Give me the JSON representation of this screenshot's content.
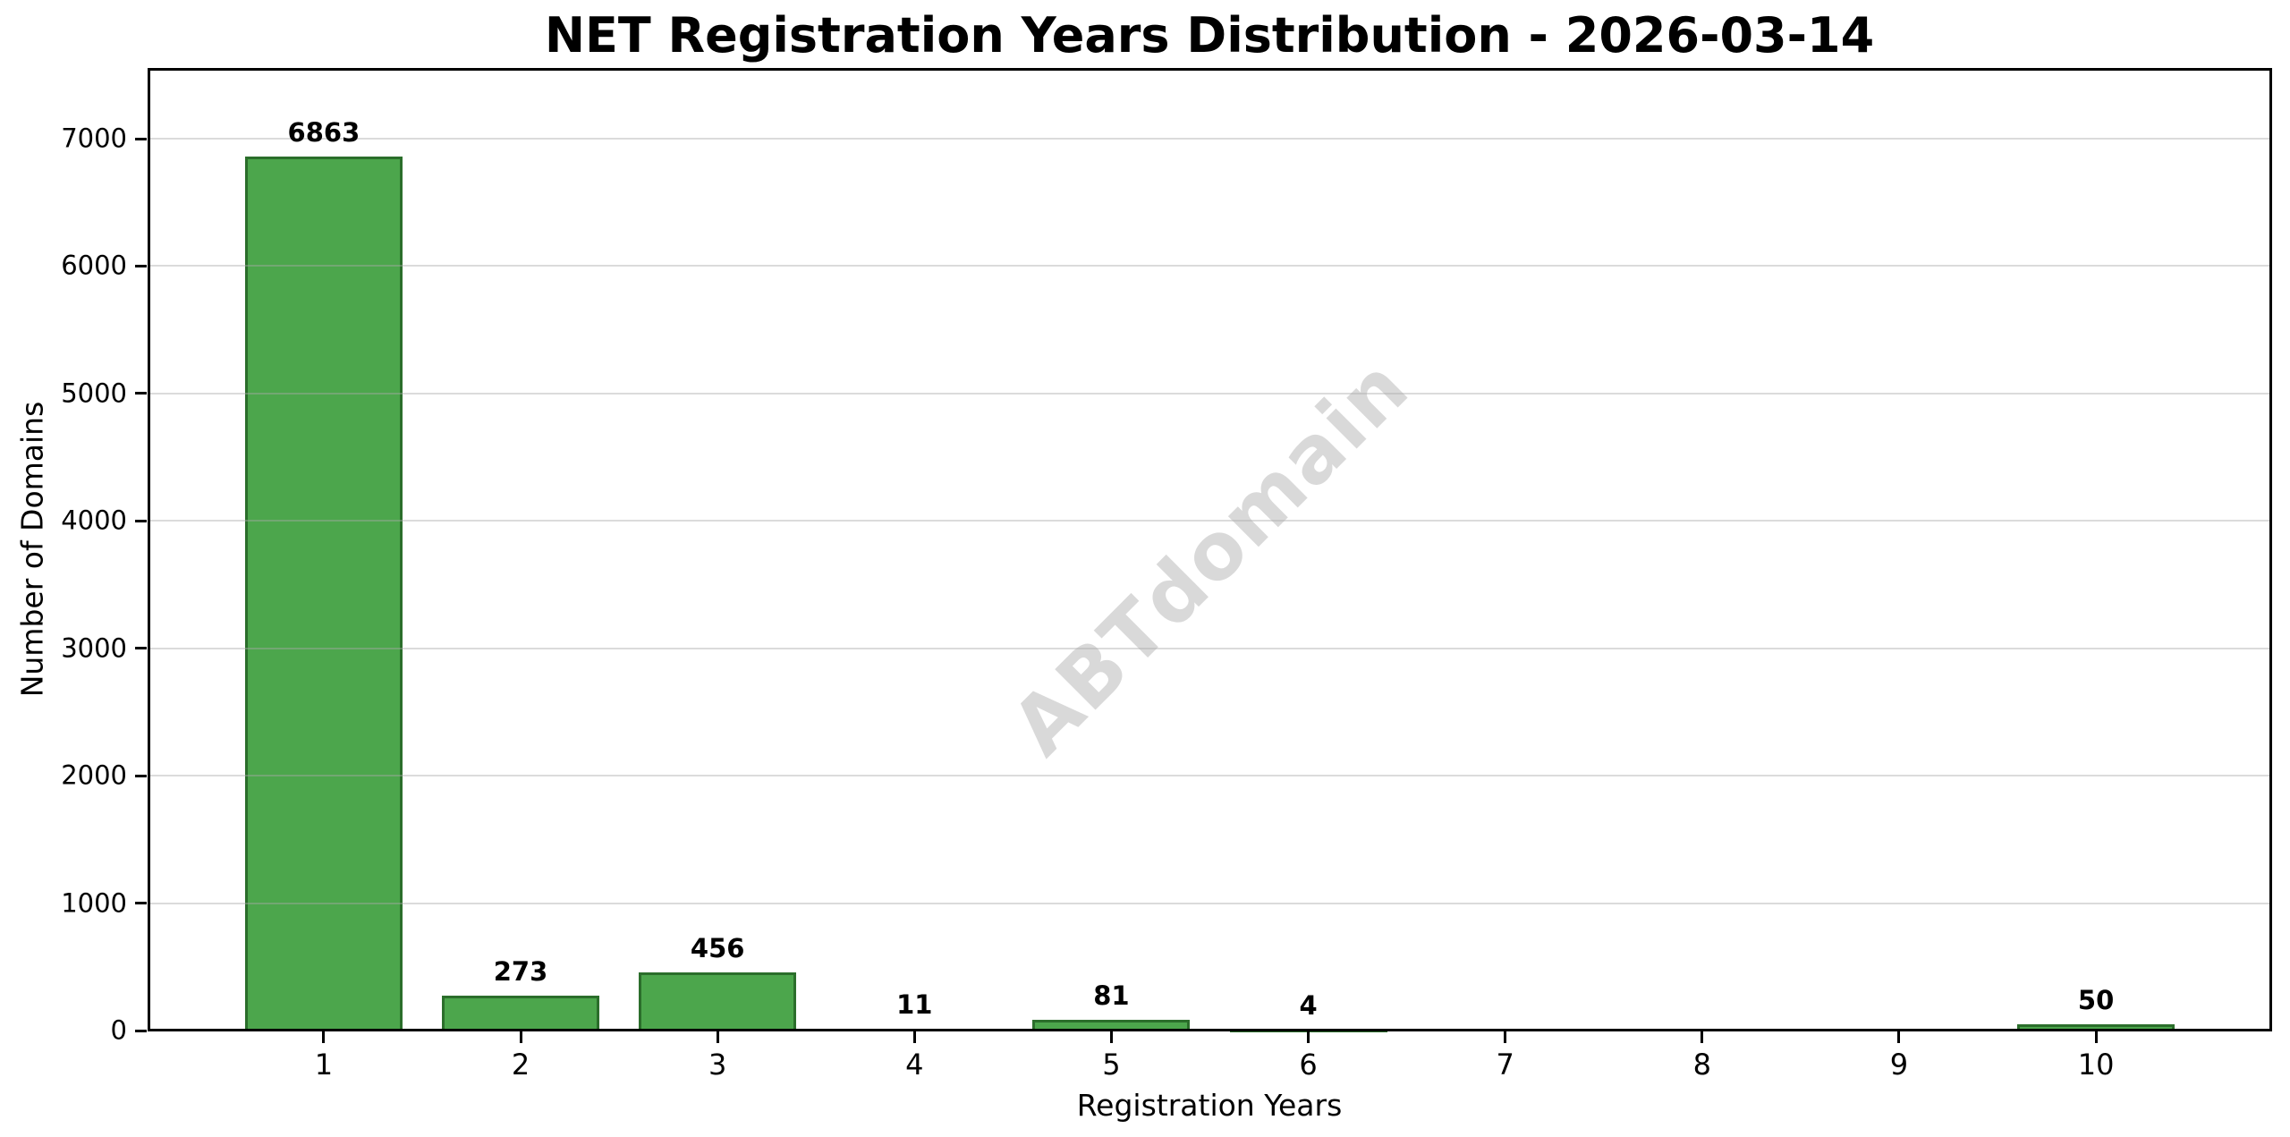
{
  "chart_data": {
    "type": "bar",
    "title": "NET Registration Years Distribution - 2026-03-14",
    "xlabel": "Registration Years",
    "ylabel": "Number of Domains",
    "watermark": "ABTdomain",
    "categories": [
      "1",
      "2",
      "3",
      "4",
      "5",
      "6",
      "7",
      "8",
      "9",
      "10"
    ],
    "values": [
      6863,
      273,
      456,
      11,
      81,
      4,
      0,
      0,
      0,
      50
    ],
    "bar_value_labels": [
      "6863",
      "273",
      "456",
      "11",
      "81",
      "4",
      "",
      "",
      "",
      "50"
    ],
    "ylim": [
      0,
      7548
    ],
    "xlim": [
      0.11,
      10.89
    ],
    "yticks": [
      0,
      1000,
      2000,
      3000,
      4000,
      5000,
      6000,
      7000
    ],
    "bar_width_units": 0.8,
    "grid": "horizontal",
    "legend": "none",
    "colors": {
      "bar_fill": "#4CA64C",
      "bar_edge": "#2B6E2B",
      "watermark": "#D9D9D9",
      "gridline": "#DCDCDC",
      "axis": "#000000",
      "background": "#FFFFFF"
    }
  }
}
